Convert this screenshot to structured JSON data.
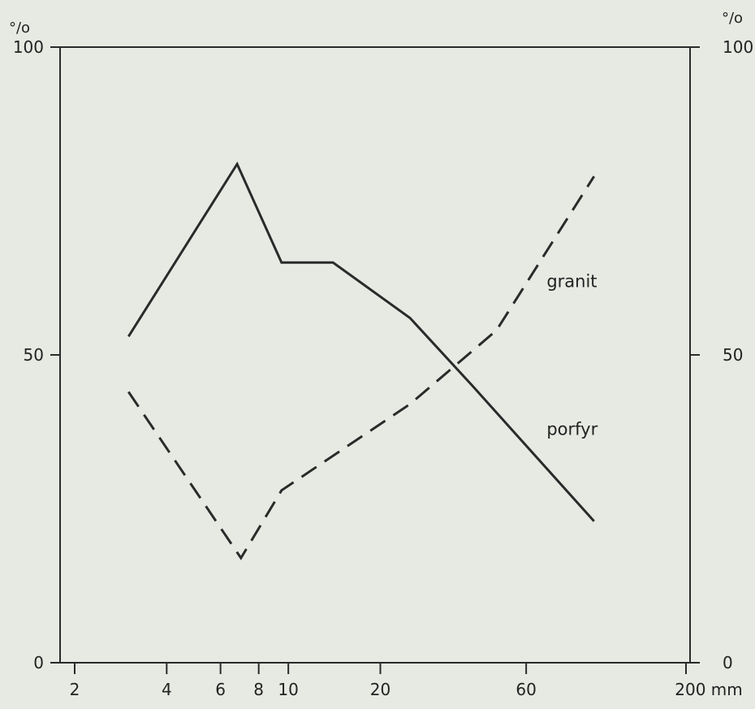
{
  "chart_data": {
    "type": "line",
    "title": "",
    "xlabel": "",
    "ylabel": "",
    "x_scale": "log",
    "x_tick_labels": [
      "2",
      "4",
      "6",
      "8",
      "10",
      "20",
      "60",
      "200 mm"
    ],
    "x_ticks": [
      2,
      4,
      6,
      8,
      10,
      20,
      60,
      200
    ],
    "xlim": [
      2,
      200
    ],
    "y_left_unit": "%",
    "y_right_unit": "%",
    "y_tick_labels": [
      "0",
      "50",
      "100"
    ],
    "y_ticks": [
      0,
      50,
      100
    ],
    "ylim": [
      0,
      100
    ],
    "grid": false,
    "legend": "none",
    "series": [
      {
        "name": "granit",
        "style": "solid",
        "color": "#2a2a2a",
        "x": [
          3,
          6.8,
          9.5,
          14,
          25,
          40,
          100
        ],
        "y": [
          53,
          81,
          65,
          65,
          56,
          45,
          23
        ]
      },
      {
        "name": "porfyr",
        "style": "dashed",
        "color": "#2a2a2a",
        "x": [
          3,
          7,
          9.5,
          25,
          48,
          100
        ],
        "y": [
          44,
          17,
          28,
          42,
          54,
          79
        ]
      }
    ],
    "series_labels": [
      {
        "text": "granit",
        "x": 70,
        "y": 61
      },
      {
        "text": "porfyr",
        "x": 70,
        "y": 37
      }
    ]
  }
}
